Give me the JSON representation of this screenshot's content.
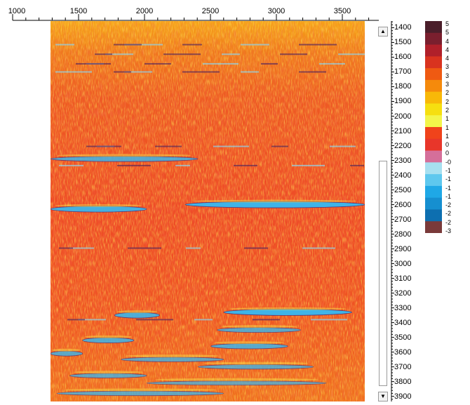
{
  "top_axis": {
    "ticks": [
      {
        "value": 1000,
        "label": "1000"
      },
      {
        "value": 1500,
        "label": "1500"
      },
      {
        "value": 2000,
        "label": "2000"
      },
      {
        "value": 2500,
        "label": "2500"
      },
      {
        "value": 3000,
        "label": "3000"
      },
      {
        "value": 3500,
        "label": "3500"
      }
    ]
  },
  "depth_axis": {
    "labels": [
      "1400",
      "1500",
      "1600",
      "1700",
      "1800",
      "1900",
      "2000",
      "2100",
      "2200",
      "2300",
      "2400",
      "2500",
      "2600",
      "2700",
      "2800",
      "2900",
      "3000",
      "3100",
      "3200",
      "3300",
      "3400",
      "3500",
      "3600",
      "3700",
      "3800",
      "3900"
    ],
    "range": [
      1355,
      3935
    ]
  },
  "scrollbar": {
    "up_icon": "triangle-up-icon",
    "down_icon": "triangle-down-icon",
    "thumb_start_depth": 2300,
    "thumb_end_depth": 3830
  },
  "colorbar": {
    "labels": [
      "5",
      "5",
      "4",
      "4",
      "4",
      "3",
      "3",
      "3",
      "2",
      "2",
      "2",
      "1",
      "1",
      "1",
      "0",
      "0",
      "-0",
      "-1",
      "-1",
      "-1",
      "-1",
      "-2",
      "-2",
      "-2",
      "-3"
    ],
    "colors": [
      "#4a1e2a",
      "#7a1f2e",
      "#b0202a",
      "#d9331f",
      "#ef5a12",
      "#f58a0c",
      "#f8b808",
      "#f6df10",
      "#f3f54a",
      "#f0431b",
      "#e8362a",
      "#d56f9a",
      "#a7e0f0",
      "#5ec8ee",
      "#1fa8e6",
      "#168fd0",
      "#0d6fb0",
      "#7a3a3a"
    ]
  },
  "bands": [
    {
      "depth": 2290,
      "x0": 1250,
      "x1": 2400,
      "weight": 0.7
    },
    {
      "depth": 2600,
      "x0": 2300,
      "x1": 3700,
      "weight": 1.0
    },
    {
      "depth": 2630,
      "x0": 1250,
      "x1": 2000,
      "weight": 0.9
    },
    {
      "depth": 3330,
      "x0": 2600,
      "x1": 3600,
      "weight": 1.0
    },
    {
      "depth": 3350,
      "x0": 1750,
      "x1": 2100,
      "weight": 0.8
    },
    {
      "depth": 3450,
      "x0": 2550,
      "x1": 3200,
      "weight": 0.6
    },
    {
      "depth": 3520,
      "x0": 1500,
      "x1": 1900,
      "weight": 0.7
    },
    {
      "depth": 3560,
      "x0": 2500,
      "x1": 3100,
      "weight": 0.7
    },
    {
      "depth": 3610,
      "x0": 1250,
      "x1": 1500,
      "weight": 0.6
    },
    {
      "depth": 3650,
      "x0": 1800,
      "x1": 2600,
      "weight": 0.5
    },
    {
      "depth": 3700,
      "x0": 2400,
      "x1": 3300,
      "weight": 0.5
    },
    {
      "depth": 3760,
      "x0": 1400,
      "x1": 2000,
      "weight": 0.5
    },
    {
      "depth": 3810,
      "x0": 2000,
      "x1": 3400,
      "weight": 0.4
    },
    {
      "depth": 3880,
      "x0": 1300,
      "x1": 2600,
      "weight": 0.5
    }
  ],
  "thin_lines": [
    1515,
    1580,
    1645,
    1700,
    2205,
    2335,
    2895,
    3380
  ],
  "x_range": [
    1250,
    3700
  ]
}
